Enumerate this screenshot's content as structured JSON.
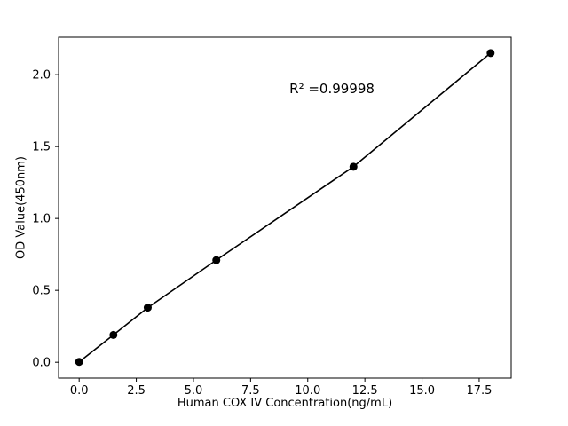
{
  "chart_data": {
    "type": "scatter",
    "title": "",
    "xlabel": "Human COX IV Concentration(ng/mL)",
    "ylabel": "OD Value(450nm)",
    "x": [
      0,
      1.5,
      3,
      6,
      12,
      18
    ],
    "y": [
      0.003,
      0.19,
      0.38,
      0.71,
      1.36,
      2.15
    ],
    "fit_line": true,
    "xlim": [
      -0.9,
      18.9
    ],
    "ylim": [
      -0.11,
      2.26
    ],
    "x_ticks": {
      "values": [
        0,
        2.5,
        5,
        7.5,
        10,
        12.5,
        15,
        17.5
      ],
      "labels": [
        "0.0",
        "2.5",
        "5.0",
        "7.5",
        "10.0",
        "12.5",
        "15.0",
        "17.5"
      ]
    },
    "y_ticks": {
      "values": [
        0,
        0.5,
        1,
        1.5,
        2
      ],
      "labels": [
        "0.0",
        "0.5",
        "1.0",
        "1.5",
        "2.0"
      ]
    },
    "annotation": {
      "text": "R² =0.99998",
      "x": 9.2,
      "y": 1.9
    },
    "legend": null,
    "grid": false,
    "colors": {
      "line": "#000000",
      "marker": "#000000",
      "background": "#ffffff",
      "spine": "#000000"
    }
  }
}
